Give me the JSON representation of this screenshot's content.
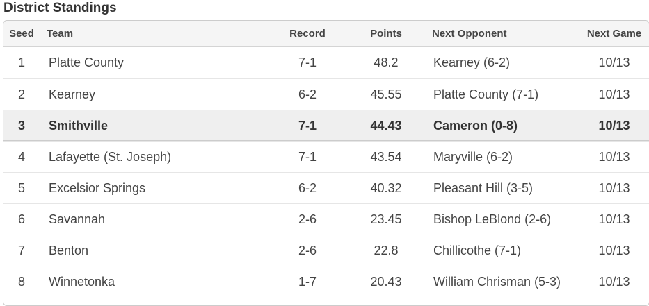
{
  "title": "District Standings",
  "columns": [
    "Seed",
    "Team",
    "Record",
    "Points",
    "Next Opponent",
    "Next Game"
  ],
  "rows": [
    {
      "seed": "1",
      "team": "Platte County",
      "record": "7-1",
      "points": "48.2",
      "opponent": "Kearney (6-2)",
      "game": "10/13"
    },
    {
      "seed": "2",
      "team": "Kearney",
      "record": "6-2",
      "points": "45.55",
      "opponent": "Platte County (7-1)",
      "game": "10/13"
    },
    {
      "seed": "3",
      "team": "Smithville",
      "record": "7-1",
      "points": "44.43",
      "opponent": "Cameron (0-8)",
      "game": "10/13",
      "highlighted": true
    },
    {
      "seed": "4",
      "team": "Lafayette (St. Joseph)",
      "record": "7-1",
      "points": "43.54",
      "opponent": "Maryville (6-2)",
      "game": "10/13"
    },
    {
      "seed": "5",
      "team": "Excelsior Springs",
      "record": "6-2",
      "points": "40.32",
      "opponent": "Pleasant Hill (3-5)",
      "game": "10/13"
    },
    {
      "seed": "6",
      "team": "Savannah",
      "record": "2-6",
      "points": "23.45",
      "opponent": "Bishop LeBlond (2-6)",
      "game": "10/13"
    },
    {
      "seed": "7",
      "team": "Benton",
      "record": "2-6",
      "points": "22.8",
      "opponent": "Chillicothe (7-1)",
      "game": "10/13"
    },
    {
      "seed": "8",
      "team": "Winnetonka",
      "record": "1-7",
      "points": "20.43",
      "opponent": "William Chrisman (5-3)",
      "game": "10/13"
    }
  ]
}
